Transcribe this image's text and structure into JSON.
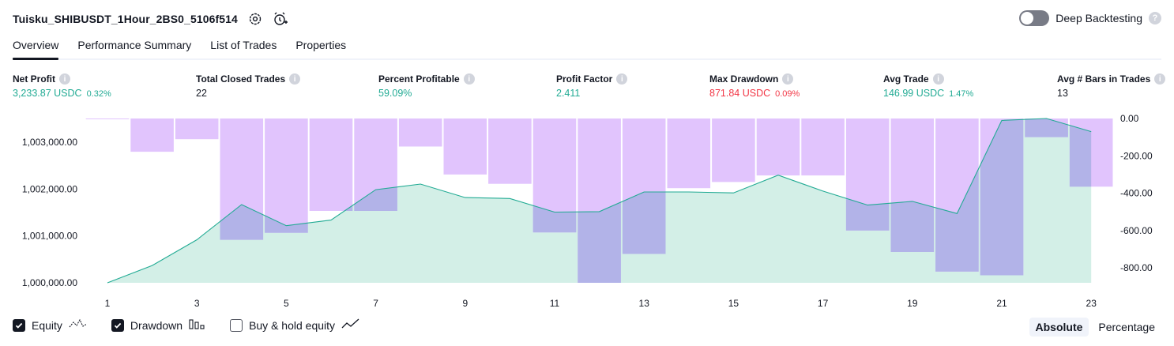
{
  "header": {
    "title": "Tuisku_SHIBUSDT_1Hour_2BS0_5106f514",
    "settings_icon": "gear-icon",
    "alert_icon": "alarm-clock-add-icon"
  },
  "deep_backtesting": {
    "label": "Deep Backtesting",
    "enabled": false,
    "help_icon": "question-icon"
  },
  "tabs": [
    {
      "label": "Overview",
      "active": true
    },
    {
      "label": "Performance Summary",
      "active": false
    },
    {
      "label": "List of Trades",
      "active": false
    },
    {
      "label": "Properties",
      "active": false
    }
  ],
  "stats": [
    {
      "label": "Net Profit",
      "value": "3,233.87 USDC",
      "pct": "0.32%",
      "tone": "green"
    },
    {
      "label": "Total Closed Trades",
      "value": "22",
      "pct": "",
      "tone": "neutral"
    },
    {
      "label": "Percent Profitable",
      "value": "59.09%",
      "pct": "",
      "tone": "green"
    },
    {
      "label": "Profit Factor",
      "value": "2.411",
      "pct": "",
      "tone": "green"
    },
    {
      "label": "Max Drawdown",
      "value": "871.84 USDC",
      "pct": "0.09%",
      "tone": "red"
    },
    {
      "label": "Avg Trade",
      "value": "146.99 USDC",
      "pct": "1.47%",
      "tone": "green"
    },
    {
      "label": "Avg # Bars in Trades",
      "value": "13",
      "pct": "",
      "tone": "neutral"
    }
  ],
  "legend": {
    "equity": {
      "label": "Equity",
      "checked": true,
      "icon": "equity-line-icon"
    },
    "drawdown": {
      "label": "Drawdown",
      "checked": true,
      "icon": "drawdown-bars-icon"
    },
    "buy_hold": {
      "label": "Buy & hold equity",
      "checked": false,
      "icon": "buy-hold-line-icon"
    }
  },
  "modes": {
    "absolute": "Absolute",
    "percentage": "Percentage",
    "active": "absolute"
  },
  "colors": {
    "green": "#22ab94",
    "red": "#f23645",
    "equity_line": "#22ab94",
    "equity_fill": "#d3efe7",
    "drawdown_fill": "#e1c4fd",
    "overlap_fill": "#b2b3e8",
    "text": "#131722",
    "muted": "#787b86"
  },
  "chart_data": {
    "type": "area",
    "x": [
      1,
      2,
      3,
      4,
      5,
      6,
      7,
      8,
      9,
      10,
      11,
      12,
      13,
      14,
      15,
      16,
      17,
      18,
      19,
      20,
      21,
      22,
      23
    ],
    "x_ticks": [
      "1",
      "3",
      "5",
      "7",
      "9",
      "11",
      "13",
      "15",
      "17",
      "19",
      "21",
      "23"
    ],
    "series": [
      {
        "axis": "left",
        "values": [
          1000000,
          1000370,
          1000920,
          1001670,
          1001220,
          1001340,
          1001990,
          1002110,
          1001820,
          1001800,
          1001510,
          1001520,
          1001940,
          1001940,
          1001920,
          1002300,
          1001960,
          1001660,
          1001740,
          1001480,
          1003470,
          1003510,
          1003230
        ]
      },
      {
        "axis": "right",
        "values": [
          0,
          -178,
          -111,
          -650,
          -612,
          -495,
          -495,
          -150,
          -300,
          -350,
          -610,
          -880,
          -725,
          -373,
          -340,
          -305,
          -305,
          -600,
          -715,
          -820,
          -840,
          -100,
          -365
        ]
      }
    ],
    "left_axis": {
      "ticks": [
        "1,000,000.00",
        "1,001,000.00",
        "1,002,000.00",
        "1,003,000.00"
      ],
      "ylim": [
        1000000,
        1003510
      ]
    },
    "right_axis": {
      "ticks": [
        "0.00",
        "-200.00",
        "-400.00",
        "-600.00",
        "-800.00"
      ],
      "ylim": [
        -880,
        0
      ]
    }
  }
}
